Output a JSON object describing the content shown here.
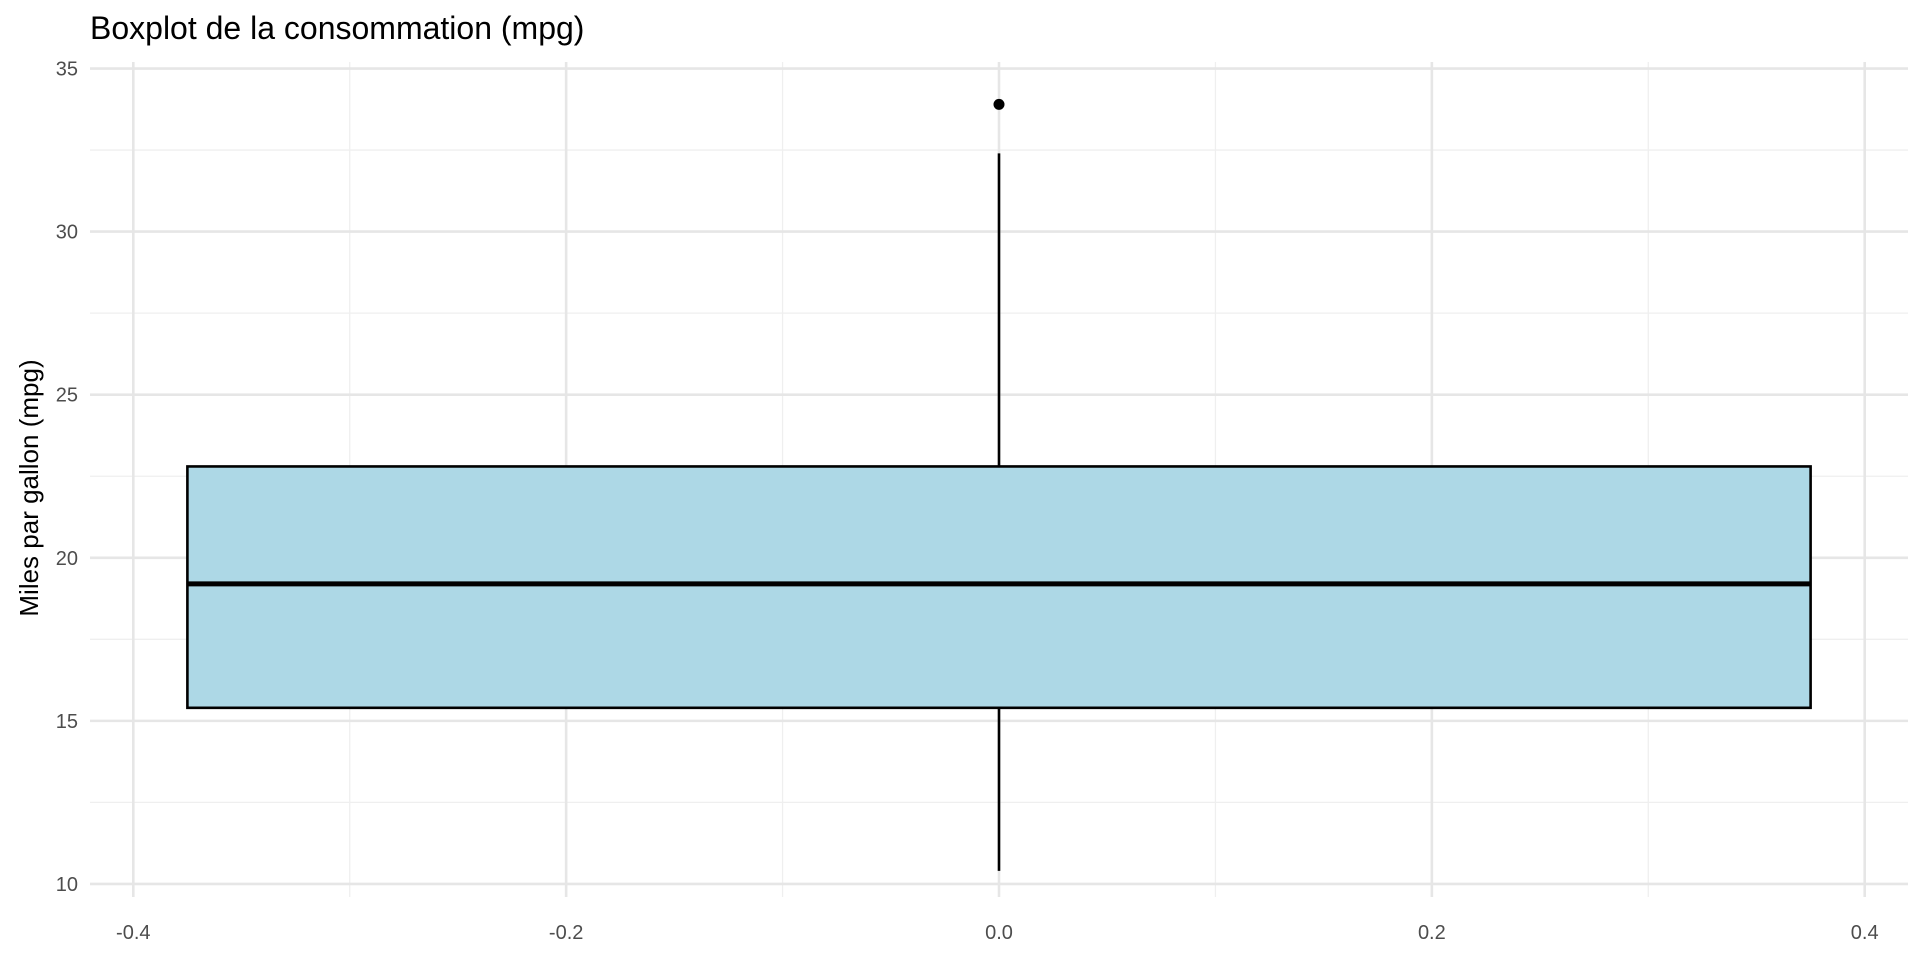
{
  "chart_data": {
    "type": "boxplot",
    "title": "Boxplot de la consommation (mpg)",
    "xlabel": "",
    "ylabel": "Miles par gallon (mpg)",
    "xlim": [
      -0.42,
      0.42
    ],
    "ylim": [
      9.6,
      35.2
    ],
    "xticks": [
      -0.4,
      -0.2,
      0.0,
      0.2,
      0.4
    ],
    "xtick_labels": [
      "-0.4",
      "-0.2",
      "0.0",
      "0.2",
      "0.4"
    ],
    "yticks": [
      10,
      15,
      20,
      25,
      30,
      35
    ],
    "ytick_labels": [
      "10",
      "15",
      "20",
      "25",
      "30",
      "35"
    ],
    "grid": true,
    "box": {
      "x_center": 0.0,
      "x_left": -0.375,
      "x_right": 0.375,
      "whisker_low": 10.4,
      "q1": 15.4,
      "median": 19.2,
      "q3": 22.8,
      "whisker_high": 32.4,
      "outliers": [
        33.9
      ],
      "fill_color": "#ADD8E6",
      "line_color": "#000000"
    }
  }
}
